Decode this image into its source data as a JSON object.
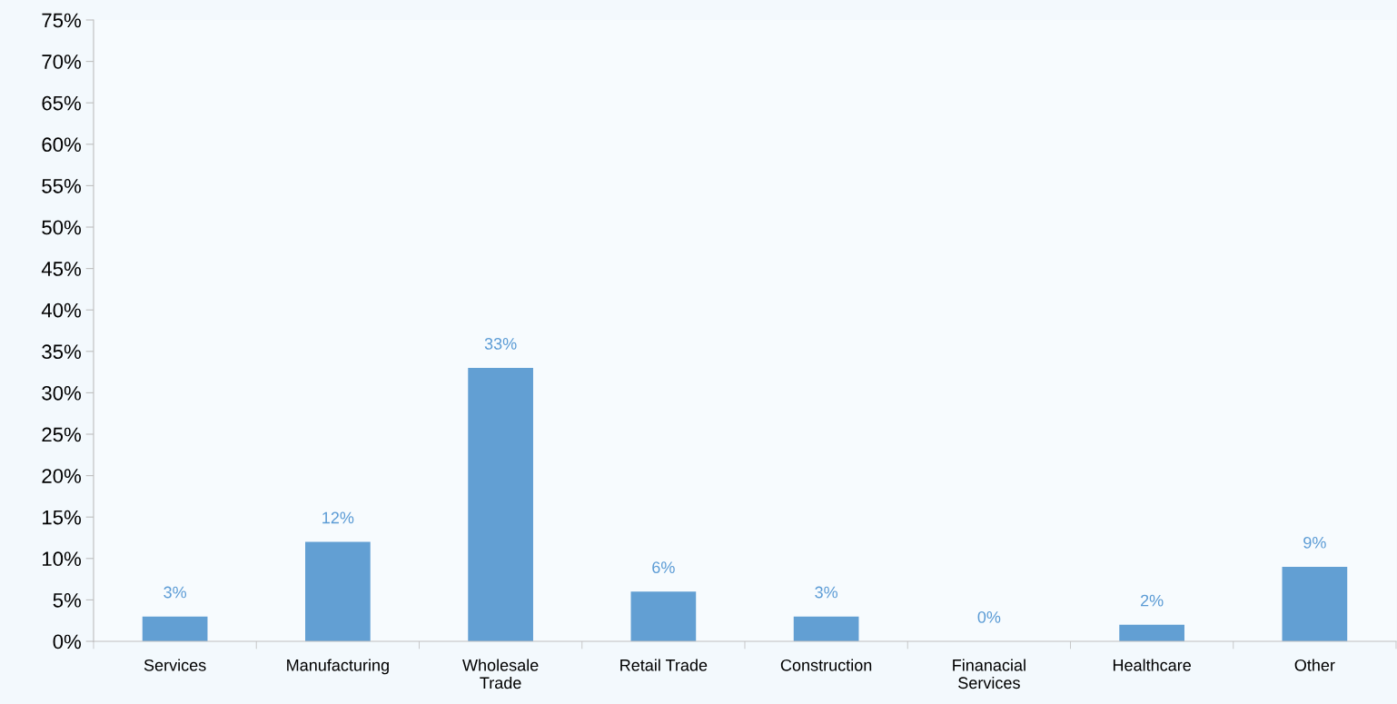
{
  "chart_data": {
    "type": "bar",
    "categories": [
      "Services",
      "Manufacturing",
      "Wholesale\nTrade",
      "Retail Trade",
      "Construction",
      "Finanacial\nServices",
      "Healthcare",
      "Other"
    ],
    "values": [
      3,
      12,
      33,
      6,
      3,
      0,
      2,
      9
    ],
    "color": "#629fd3",
    "ylim": [
      0,
      75
    ],
    "yticks": [
      {
        "value": 0,
        "label": "0%"
      },
      {
        "value": 5,
        "label": "5%"
      },
      {
        "value": 10,
        "label": "10%"
      },
      {
        "value": 15,
        "label": "15%"
      },
      {
        "value": 20,
        "label": "20%"
      },
      {
        "value": 25,
        "label": "25%"
      },
      {
        "value": 30,
        "label": "30%"
      },
      {
        "value": 35,
        "label": "35%"
      },
      {
        "value": 40,
        "label": "40%"
      },
      {
        "value": 45,
        "label": "45%"
      },
      {
        "value": 50,
        "label": "50%"
      },
      {
        "value": 55,
        "label": "55%"
      },
      {
        "value": 60,
        "label": "60%"
      },
      {
        "value": 65,
        "label": "65%"
      },
      {
        "value": 70,
        "label": "70%"
      },
      {
        "value": 75,
        "label": "75%"
      }
    ],
    "value_labels": [
      "3%",
      "12%",
      "33%",
      "6%",
      "3%",
      "0%",
      "2%",
      "9%"
    ],
    "grid": false,
    "legend": false
  }
}
